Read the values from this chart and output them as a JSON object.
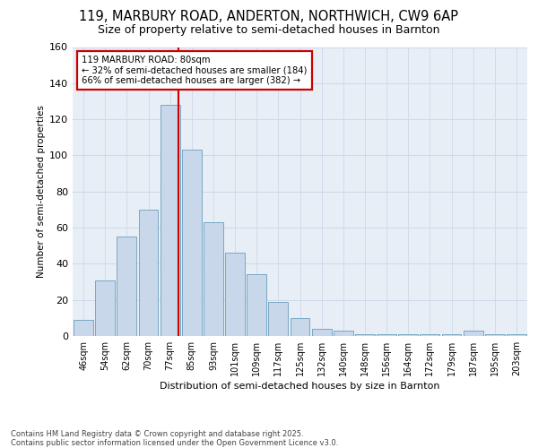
{
  "title1": "119, MARBURY ROAD, ANDERTON, NORTHWICH, CW9 6AP",
  "title2": "Size of property relative to semi-detached houses in Barnton",
  "xlabel": "Distribution of semi-detached houses by size in Barnton",
  "ylabel": "Number of semi-detached properties",
  "categories": [
    "46sqm",
    "54sqm",
    "62sqm",
    "70sqm",
    "77sqm",
    "85sqm",
    "93sqm",
    "101sqm",
    "109sqm",
    "117sqm",
    "125sqm",
    "132sqm",
    "140sqm",
    "148sqm",
    "156sqm",
    "164sqm",
    "172sqm",
    "179sqm",
    "187sqm",
    "195sqm",
    "203sqm"
  ],
  "bar_heights": [
    9,
    31,
    55,
    70,
    128,
    103,
    63,
    46,
    34,
    19,
    10,
    4,
    3,
    1,
    1,
    1,
    1,
    1,
    3,
    1,
    1
  ],
  "bar_color": "#c8d8ea",
  "bar_edge_color": "#6a9fbf",
  "vline_color": "#cc0000",
  "annotation_text": "119 MARBURY ROAD: 80sqm\n← 32% of semi-detached houses are smaller (184)\n66% of semi-detached houses are larger (382) →",
  "annotation_box_facecolor": "#ffffff",
  "annotation_box_edgecolor": "#cc0000",
  "grid_color": "#ccd8e8",
  "background_color": "#e8eef6",
  "footer_text": "Contains HM Land Registry data © Crown copyright and database right 2025.\nContains public sector information licensed under the Open Government Licence v3.0.",
  "ylim": [
    0,
    160
  ],
  "yticks": [
    0,
    20,
    40,
    60,
    80,
    100,
    120,
    140,
    160
  ]
}
